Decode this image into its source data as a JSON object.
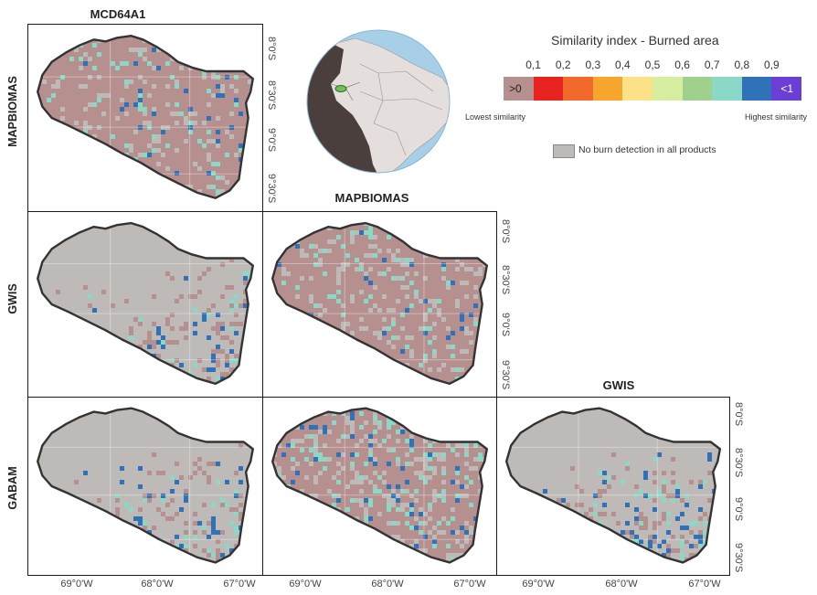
{
  "columns": [
    "MCD64A1",
    "MAPBIOMAS",
    "GWIS"
  ],
  "rows": [
    "MAPBIOMAS",
    "GWIS",
    "GABAM"
  ],
  "lat_ticks": [
    "8°0'S",
    "8°30'S",
    "9°0'S",
    "9°30'S"
  ],
  "lon_ticks": [
    "69°0'W",
    "68°0'W",
    "67°0'W"
  ],
  "legend": {
    "title": "Similarity index - Burned area",
    "ticks": [
      "0,1",
      "0,2",
      "0,3",
      "0,4",
      "0,5",
      "0,6",
      "0,7",
      "0,8",
      "0,9"
    ],
    "first_label": ">0",
    "last_label": "<1",
    "lowest": "Lowest similarity",
    "highest": "Highest similarity",
    "no_burn": "No burn detection in all products",
    "colors": [
      "#b6908e",
      "#e8221f",
      "#f26a2b",
      "#f6a52d",
      "#fbe288",
      "#d6ed9f",
      "#9fd18d",
      "#8cd8c6",
      "#2f72b8",
      "#6b3fd6"
    ],
    "no_burn_color": "#bdbab7"
  },
  "colors": {
    "land_nodata": "#bdbab7",
    "low_similarity": "#b6908e",
    "mid_similarity": "#8cd8c6",
    "high_similarity": "#2f72b8",
    "outline": "#333333",
    "globe_ocean": "#a7cfe8",
    "globe_land": "#e4dfdc",
    "globe_dark": "#4a3f3c",
    "study_area": "#6fbf5a"
  },
  "panels": [
    {
      "row": "MAPBIOMAS",
      "col": "MCD64A1",
      "base": "low_similarity",
      "gray_fraction": 0.12,
      "teal_fraction": 0.05,
      "blue_fraction": 0.03
    },
    {
      "row": "GWIS",
      "col": "MCD64A1",
      "base": "land_nodata",
      "gray_fraction": 0.0,
      "teal_fraction": 0.03,
      "blue_fraction": 0.03
    },
    {
      "row": "GWIS",
      "col": "MAPBIOMAS",
      "base": "low_similarity",
      "gray_fraction": 0.15,
      "teal_fraction": 0.04,
      "blue_fraction": 0.02
    },
    {
      "row": "GABAM",
      "col": "MCD64A1",
      "base": "land_nodata",
      "gray_fraction": 0.0,
      "teal_fraction": 0.07,
      "blue_fraction": 0.06
    },
    {
      "row": "GABAM",
      "col": "MAPBIOMAS",
      "base": "low_similarity",
      "gray_fraction": 0.2,
      "teal_fraction": 0.08,
      "blue_fraction": 0.06
    },
    {
      "row": "GABAM",
      "col": "GWIS",
      "base": "land_nodata",
      "gray_fraction": 0.0,
      "teal_fraction": 0.08,
      "blue_fraction": 0.08
    }
  ]
}
